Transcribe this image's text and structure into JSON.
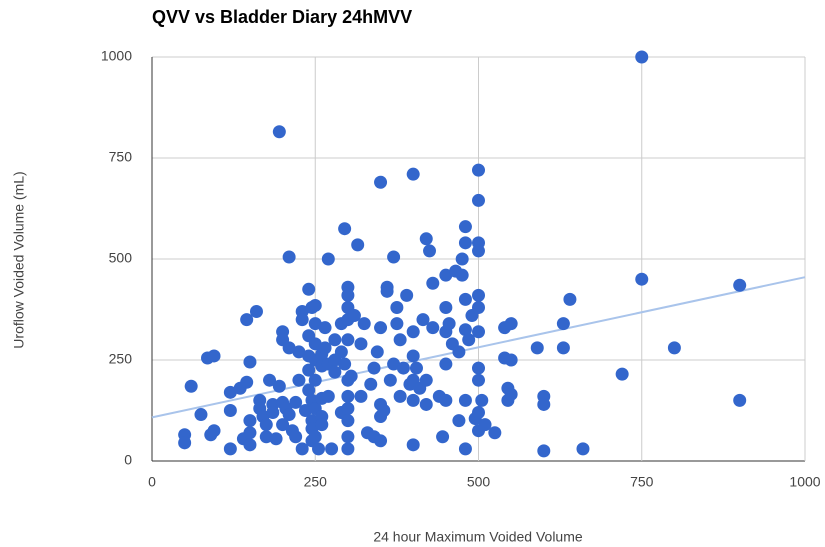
{
  "chart_data": {
    "type": "scatter",
    "title": "QVV vs Bladder Diary 24hMVV",
    "x_label": "24 hour Maximum Voided Volume",
    "y_label": "Uroflow Voided Volume (mL)",
    "xlim": [
      0,
      1000
    ],
    "xticks": [
      0,
      250,
      500,
      750,
      1000
    ],
    "ylim": [
      0,
      1000
    ],
    "yticks": [
      0,
      250,
      500,
      750,
      1000
    ],
    "grid": true,
    "series": [
      {
        "color": "#3366cc",
        "x": [
          50,
          50,
          60,
          75,
          85,
          95,
          95,
          90,
          120,
          120,
          120,
          135,
          140,
          145,
          150,
          145,
          150,
          150,
          150,
          160,
          165,
          165,
          170,
          175,
          175,
          180,
          185,
          185,
          190,
          195,
          195,
          200,
          200,
          200,
          200,
          205,
          210,
          210,
          210,
          215,
          220,
          220,
          225,
          225,
          230,
          230,
          230,
          235,
          240,
          240,
          240,
          240,
          240,
          245,
          245,
          245,
          245,
          245,
          250,
          250,
          250,
          250,
          250,
          250,
          250,
          255,
          260,
          260,
          260,
          260,
          260,
          265,
          265,
          270,
          270,
          270,
          275,
          280,
          280,
          280,
          290,
          290,
          290,
          295,
          295,
          300,
          300,
          300,
          300,
          300,
          300,
          300,
          300,
          300,
          300,
          300,
          305,
          310,
          315,
          320,
          320,
          325,
          330,
          335,
          340,
          340,
          345,
          350,
          350,
          350,
          350,
          350,
          355,
          360,
          360,
          365,
          370,
          370,
          375,
          375,
          380,
          380,
          385,
          390,
          395,
          400,
          400,
          400,
          400,
          400,
          400,
          405,
          410,
          415,
          420,
          420,
          420,
          425,
          430,
          430,
          440,
          445,
          450,
          450,
          450,
          450,
          450,
          455,
          460,
          465,
          470,
          470,
          475,
          475,
          480,
          480,
          480,
          480,
          480,
          480,
          485,
          490,
          495,
          500,
          500,
          500,
          500,
          500,
          500,
          500,
          500,
          500,
          500,
          500,
          505,
          510,
          525,
          540,
          540,
          545,
          545,
          550,
          550,
          550,
          590,
          600,
          600,
          600,
          640,
          660,
          630,
          630,
          720,
          750,
          750,
          800,
          900,
          900
        ],
        "values": [
          65,
          45,
          185,
          115,
          255,
          260,
          75,
          65,
          170,
          125,
          30,
          180,
          55,
          350,
          245,
          195,
          100,
          70,
          40,
          370,
          150,
          130,
          110,
          60,
          90,
          200,
          140,
          120,
          55,
          815,
          185,
          320,
          300,
          145,
          90,
          130,
          505,
          280,
          115,
          75,
          60,
          145,
          200,
          270,
          370,
          350,
          30,
          125,
          425,
          310,
          260,
          225,
          175,
          380,
          150,
          100,
          80,
          50,
          385,
          340,
          290,
          250,
          200,
          130,
          60,
          30,
          265,
          235,
          155,
          110,
          90,
          330,
          280,
          500,
          240,
          160,
          30,
          300,
          250,
          220,
          340,
          270,
          120,
          575,
          240,
          430,
          410,
          380,
          350,
          300,
          200,
          160,
          130,
          100,
          60,
          30,
          210,
          360,
          535,
          290,
          160,
          340,
          70,
          190,
          230,
          60,
          270,
          690,
          330,
          140,
          110,
          50,
          125,
          430,
          420,
          200,
          505,
          240,
          380,
          340,
          300,
          160,
          230,
          410,
          190,
          710,
          320,
          260,
          200,
          150,
          40,
          230,
          180,
          350,
          550,
          200,
          140,
          520,
          440,
          330,
          160,
          60,
          460,
          380,
          320,
          240,
          150,
          340,
          290,
          470,
          100,
          270,
          460,
          500,
          580,
          540,
          400,
          325,
          150,
          30,
          300,
          360,
          105,
          720,
          645,
          540,
          520,
          410,
          380,
          320,
          230,
          200,
          120,
          75,
          150,
          90,
          70,
          330,
          255,
          180,
          150,
          340,
          250,
          165,
          280,
          160,
          140,
          25,
          400,
          30,
          340,
          280,
          215,
          1000,
          450,
          280,
          435,
          150
        ]
      }
    ],
    "trendline": {
      "color": "#a9c4eb",
      "x": [
        0,
        1000
      ],
      "values": [
        108,
        455
      ]
    }
  }
}
